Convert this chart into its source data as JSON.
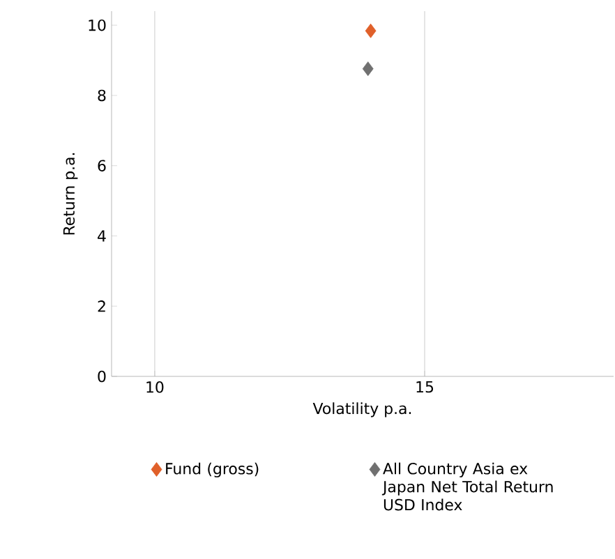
{
  "chart_data": {
    "type": "scatter",
    "xlabel": "Volatility p.a.",
    "ylabel": "Return p.a.",
    "xlim": [
      9.2,
      18.5
    ],
    "xticks": [
      10,
      15
    ],
    "ylim": [
      0,
      10.4
    ],
    "yticks": [
      0,
      2,
      4,
      6,
      8,
      10
    ],
    "grid": "x",
    "legend": "bottom",
    "marker": "diamond",
    "series": [
      {
        "name": "Fund (gross)",
        "color": "#e0602a",
        "x": [
          14.0
        ],
        "values": [
          9.84
        ]
      },
      {
        "name": "All Country Asia ex Japan Net Total Return USD Index",
        "color": "#707070",
        "x": [
          13.95
        ],
        "values": [
          8.76
        ]
      }
    ]
  }
}
